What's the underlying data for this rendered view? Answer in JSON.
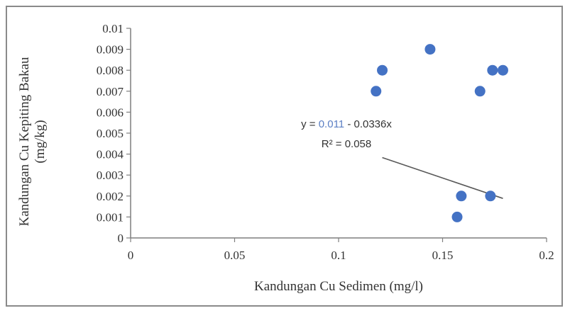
{
  "chart_data": {
    "type": "scatter",
    "xlabel": "Kandungan Cu Sedimen (mg/l)",
    "ylabel_line1": "Kandungan Cu Kepiting Bakau",
    "ylabel_line2": "(mg/kg)",
    "xlim": [
      0,
      0.2
    ],
    "ylim": [
      0,
      0.01
    ],
    "x_ticks": [
      "0",
      "0.05",
      "0.1",
      "0.15",
      "0.2"
    ],
    "y_ticks": [
      "0",
      "0.001",
      "0.002",
      "0.003",
      "0.004",
      "0.005",
      "0.006",
      "0.007",
      "0.008",
      "0.009",
      "0.01"
    ],
    "grid": false,
    "series": [
      {
        "color": "#4472c4",
        "points": [
          {
            "x": 0.118,
            "y": 0.007
          },
          {
            "x": 0.121,
            "y": 0.008
          },
          {
            "x": 0.144,
            "y": 0.009
          },
          {
            "x": 0.157,
            "y": 0.001
          },
          {
            "x": 0.159,
            "y": 0.002
          },
          {
            "x": 0.168,
            "y": 0.007
          },
          {
            "x": 0.173,
            "y": 0.002
          },
          {
            "x": 0.174,
            "y": 0.008
          },
          {
            "x": 0.179,
            "y": 0.008
          }
        ]
      }
    ],
    "trendline": {
      "color": "#595959",
      "x_range": [
        0.121,
        0.179
      ],
      "equation_prefix": "y = ",
      "equation_intercept": "0.011",
      "equation_suffix": " - 0.0336x",
      "r_squared": "R² = 0.058",
      "accent_color": "#5b7fc4"
    }
  }
}
